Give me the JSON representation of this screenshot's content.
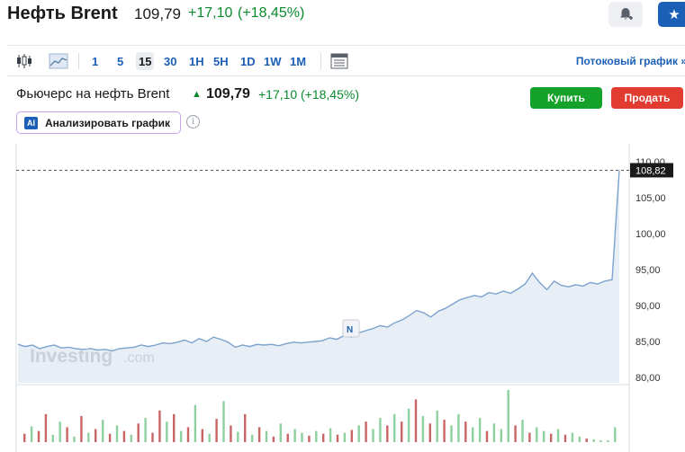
{
  "header": {
    "title": "Нефть Brent",
    "price": "109,79",
    "change": "+17,10",
    "change_pct": "(+18,45%)",
    "icons": {
      "alert": "bell-plus-icon",
      "watchlist": "star-icon"
    }
  },
  "toolbar": {
    "chart_type_icons": [
      "candlestick-icon",
      "area-chart-icon"
    ],
    "timeframes": [
      "1",
      "5",
      "15",
      "30",
      "1H",
      "5H",
      "1D",
      "1W",
      "1M"
    ],
    "active_timeframe": "15",
    "streaming_link": "Потоковый график »"
  },
  "chart_header": {
    "title": "Фьючерс на нефть Brent",
    "price": "109,79",
    "change": "+17,10",
    "change_pct": "(+18,45%)",
    "buy_label": "Купить",
    "sell_label": "Продать",
    "ai_badge": "AI",
    "analyze_label": "Анализировать график",
    "info_icon": "i"
  },
  "colors": {
    "positive": "#0a8a2e",
    "buy": "#14a22a",
    "sell": "#e23b30",
    "link": "#1c5fb6",
    "area_fill": "#e8eef6",
    "area_line": "#7ba3cd",
    "volume_up": "#8fd0a0",
    "volume_down": "#c96565"
  },
  "watermark": {
    "brand": "Investing",
    "suffix": ".com"
  },
  "news_badge": "N",
  "chart_data": {
    "type": "area",
    "y_ticks": [
      "110,00",
      "105,00",
      "100,00",
      "95,00",
      "90,00",
      "85,00",
      "80,00"
    ],
    "ylim": [
      80,
      110
    ],
    "current_value_label": "108,82",
    "current_value": 108.82,
    "grid": false,
    "series": [
      {
        "values": [
          84.6,
          84.3,
          84.5,
          84.0,
          84.3,
          84.5,
          84.1,
          84.2,
          84.0,
          83.9,
          84.0,
          83.8,
          83.9,
          83.7,
          84.0,
          84.1,
          84.2,
          84.5,
          84.3,
          84.5,
          84.8,
          84.7,
          84.9,
          85.2,
          84.8,
          85.4,
          85.0,
          85.6,
          85.3,
          84.9,
          84.2,
          84.5,
          84.3,
          84.6,
          84.5,
          84.6,
          84.4,
          84.7,
          84.9,
          84.8,
          84.9,
          85.0,
          85.1,
          85.5,
          85.3,
          85.8,
          85.6,
          86.2,
          86.5,
          86.8,
          87.2,
          87.0,
          87.6,
          88.0,
          88.6,
          89.3,
          89.0,
          88.4,
          89.2,
          89.6,
          90.2,
          90.8,
          91.1,
          91.4,
          91.2,
          91.8,
          91.6,
          92.0,
          91.7,
          92.3,
          93.0,
          94.5,
          93.2,
          92.2,
          93.4,
          92.8,
          92.6,
          92.9,
          92.7,
          93.2,
          93.0,
          93.4,
          93.6,
          108.82
        ]
      }
    ],
    "volume": [
      [
        9,
        "d"
      ],
      [
        17,
        "u"
      ],
      [
        12,
        "d"
      ],
      [
        30,
        "d"
      ],
      [
        8,
        "u"
      ],
      [
        22,
        "u"
      ],
      [
        16,
        "d"
      ],
      [
        6,
        "u"
      ],
      [
        28,
        "d"
      ],
      [
        10,
        "u"
      ],
      [
        14,
        "d"
      ],
      [
        24,
        "u"
      ],
      [
        9,
        "d"
      ],
      [
        18,
        "u"
      ],
      [
        12,
        "d"
      ],
      [
        8,
        "u"
      ],
      [
        20,
        "d"
      ],
      [
        26,
        "u"
      ],
      [
        10,
        "d"
      ],
      [
        34,
        "d"
      ],
      [
        22,
        "u"
      ],
      [
        30,
        "d"
      ],
      [
        12,
        "u"
      ],
      [
        16,
        "d"
      ],
      [
        40,
        "u"
      ],
      [
        14,
        "d"
      ],
      [
        9,
        "u"
      ],
      [
        25,
        "d"
      ],
      [
        44,
        "u"
      ],
      [
        18,
        "d"
      ],
      [
        11,
        "u"
      ],
      [
        30,
        "d"
      ],
      [
        8,
        "u"
      ],
      [
        16,
        "d"
      ],
      [
        12,
        "u"
      ],
      [
        6,
        "d"
      ],
      [
        20,
        "u"
      ],
      [
        9,
        "d"
      ],
      [
        14,
        "u"
      ],
      [
        10,
        "u"
      ],
      [
        7,
        "d"
      ],
      [
        12,
        "u"
      ],
      [
        9,
        "d"
      ],
      [
        15,
        "u"
      ],
      [
        8,
        "d"
      ],
      [
        10,
        "u"
      ],
      [
        13,
        "d"
      ],
      [
        18,
        "u"
      ],
      [
        22,
        "d"
      ],
      [
        14,
        "u"
      ],
      [
        26,
        "u"
      ],
      [
        18,
        "d"
      ],
      [
        30,
        "u"
      ],
      [
        22,
        "d"
      ],
      [
        36,
        "u"
      ],
      [
        46,
        "d"
      ],
      [
        28,
        "u"
      ],
      [
        20,
        "d"
      ],
      [
        34,
        "u"
      ],
      [
        24,
        "d"
      ],
      [
        18,
        "u"
      ],
      [
        30,
        "u"
      ],
      [
        22,
        "d"
      ],
      [
        16,
        "u"
      ],
      [
        26,
        "u"
      ],
      [
        12,
        "d"
      ],
      [
        20,
        "u"
      ],
      [
        14,
        "u"
      ],
      [
        56,
        "u"
      ],
      [
        18,
        "d"
      ],
      [
        24,
        "u"
      ],
      [
        10,
        "d"
      ],
      [
        16,
        "u"
      ],
      [
        12,
        "u"
      ],
      [
        9,
        "d"
      ],
      [
        14,
        "u"
      ],
      [
        8,
        "d"
      ],
      [
        10,
        "u"
      ],
      [
        6,
        "u"
      ],
      [
        4,
        "d"
      ],
      [
        3,
        "u"
      ],
      [
        2,
        "u"
      ],
      [
        2,
        "u"
      ],
      [
        16,
        "u"
      ]
    ]
  }
}
